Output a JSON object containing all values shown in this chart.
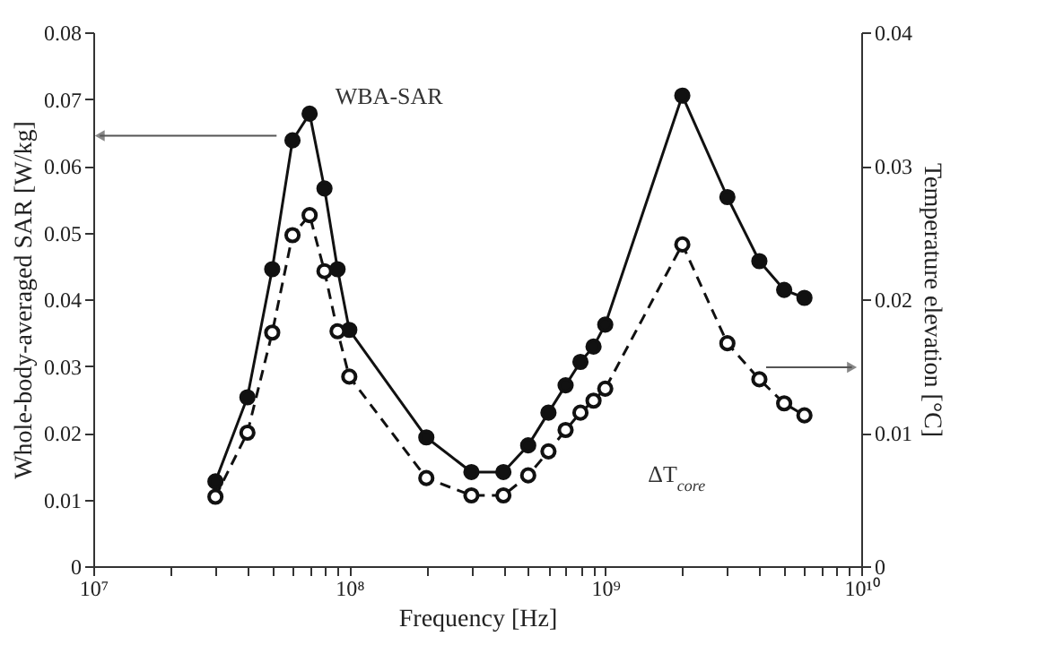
{
  "chart_data": {
    "type": "line",
    "xlabel": "Frequency [Hz]",
    "ylabel": "Whole-body-averaged SAR [W/kg]",
    "y2label": "Temperature elevation [°C]",
    "log": "x",
    "grid": false,
    "marker": "circle",
    "x": [
      30000000.0,
      40000000.0,
      50000000.0,
      60000000.0,
      70000000.0,
      80000000.0,
      90000000.0,
      100000000.0,
      200000000.0,
      300000000.0,
      400000000.0,
      500000000.0,
      600000000.0,
      700000000.0,
      800000000.0,
      900000000.0,
      1000000000.0,
      2000000000.0,
      3000000000.0,
      4000000000.0,
      5000000000.0,
      6000000000.0
    ],
    "xlim": [
      10000000.0,
      10000000000.0
    ],
    "xticks": [
      {
        "value": 10000000.0,
        "label": "10⁷"
      },
      {
        "value": 20000000.0,
        "label": null
      },
      {
        "value": 30000000.0,
        "label": null
      },
      {
        "value": 40000000.0,
        "label": null
      },
      {
        "value": 50000000.0,
        "label": null
      },
      {
        "value": 60000000.0,
        "label": null
      },
      {
        "value": 70000000.0,
        "label": null
      },
      {
        "value": 80000000.0,
        "label": null
      },
      {
        "value": 90000000.0,
        "label": null
      },
      {
        "value": 100000000.0,
        "label": "10⁸"
      },
      {
        "value": 200000000.0,
        "label": null
      },
      {
        "value": 300000000.0,
        "label": null
      },
      {
        "value": 400000000.0,
        "label": null
      },
      {
        "value": 500000000.0,
        "label": null
      },
      {
        "value": 600000000.0,
        "label": null
      },
      {
        "value": 700000000.0,
        "label": null
      },
      {
        "value": 800000000.0,
        "label": null
      },
      {
        "value": 900000000.0,
        "label": null
      },
      {
        "value": 1000000000.0,
        "label": "10⁹"
      },
      {
        "value": 2000000000.0,
        "label": null
      },
      {
        "value": 3000000000.0,
        "label": null
      },
      {
        "value": 4000000000.0,
        "label": null
      },
      {
        "value": 5000000000.0,
        "label": null
      },
      {
        "value": 6000000000.0,
        "label": null
      },
      {
        "value": 7000000000.0,
        "label": null
      },
      {
        "value": 8000000000.0,
        "label": null
      },
      {
        "value": 9000000000.0,
        "label": null
      },
      {
        "value": 10000000000.0,
        "label": "10¹⁰"
      }
    ],
    "ylim": [
      0,
      0.08
    ],
    "yticks": [
      0,
      0.01,
      0.02,
      0.03,
      0.04,
      0.05,
      0.06,
      0.07,
      0.08
    ],
    "y2lim": [
      0,
      0.04
    ],
    "y2ticks": [
      0,
      0.01,
      0.02,
      0.03,
      0.04
    ],
    "series": [
      {
        "color": "#111111",
        "line_style": "solid",
        "axis": "y",
        "values": [
          0.0127,
          0.0253,
          0.0445,
          0.0638,
          0.0678,
          0.0566,
          0.0445,
          0.0354,
          0.0193,
          0.0141,
          0.0141,
          0.0181,
          0.023,
          0.0271,
          0.0306,
          0.0329,
          0.0362,
          0.0705,
          0.0553,
          0.0457,
          0.0414,
          0.0402
        ]
      },
      {
        "color": "#111111",
        "line_style": "dashed",
        "axis": "y2",
        "values": [
          0.0052,
          0.01,
          0.0175,
          0.0248,
          0.0263,
          0.0221,
          0.0176,
          0.0142,
          0.0066,
          0.0053,
          0.0053,
          0.0068,
          0.0086,
          0.0102,
          0.0115,
          0.0124,
          0.0133,
          0.0241,
          0.0167,
          0.014,
          0.0122,
          0.0113
        ]
      }
    ],
    "annotations": [
      "WBA-SAR",
      "ΔT$_{core}$"
    ]
  }
}
